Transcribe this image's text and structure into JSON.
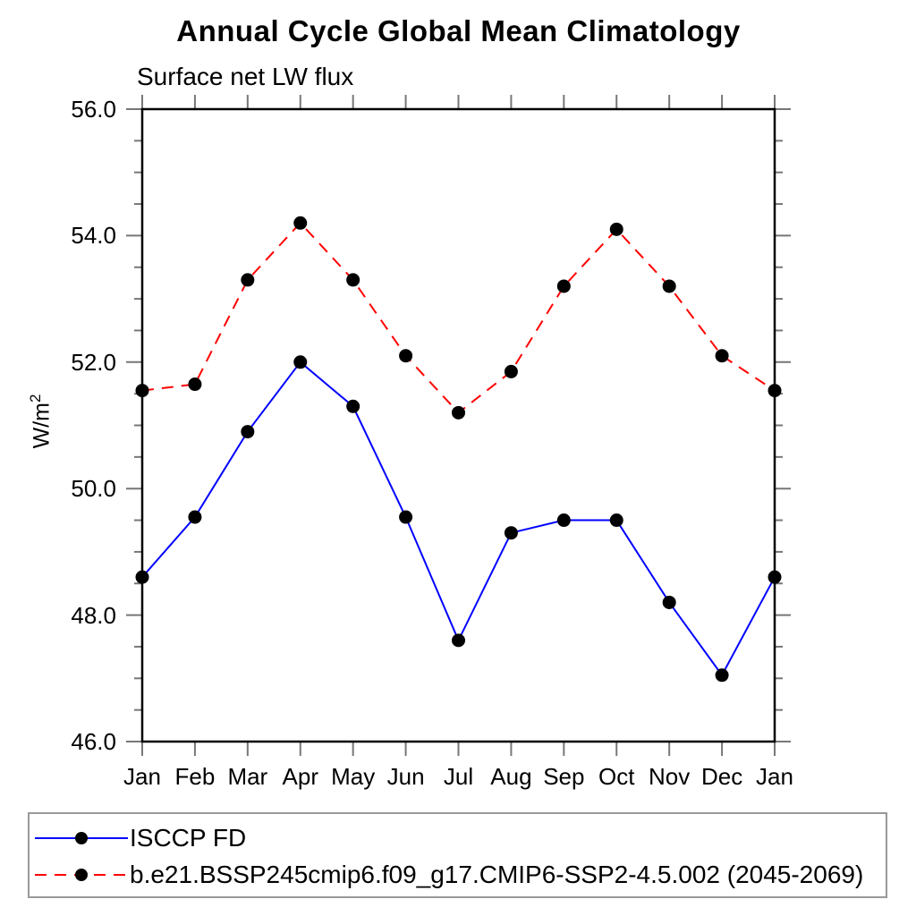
{
  "chart_data": {
    "type": "line",
    "title": "Annual Cycle Global Mean Climatology",
    "subtitle": "Surface net LW flux",
    "ylabel": "W/m",
    "ylabel_sup": "2",
    "ylim": [
      46.0,
      56.0
    ],
    "y_major_step": 2.0,
    "y_minor_step": 0.5,
    "y_ticks": [
      {
        "value": 56.0,
        "label": "56.0"
      },
      {
        "value": 54.0,
        "label": "54.0"
      },
      {
        "value": 52.0,
        "label": "52.0"
      },
      {
        "value": 50.0,
        "label": "50.0"
      },
      {
        "value": 48.0,
        "label": "48.0"
      },
      {
        "value": 46.0,
        "label": "46.0"
      }
    ],
    "categories": [
      "Jan",
      "Feb",
      "Mar",
      "Apr",
      "May",
      "Jun",
      "Jul",
      "Aug",
      "Sep",
      "Oct",
      "Nov",
      "Dec",
      "Jan"
    ],
    "series": [
      {
        "name": "ISCCP FD",
        "color": "#0000ff",
        "line_style": "solid",
        "marker": "filled-circle",
        "marker_color": "#000000",
        "values": [
          48.6,
          49.55,
          50.9,
          52.0,
          51.3,
          49.55,
          47.6,
          49.3,
          49.5,
          49.5,
          48.2,
          47.05,
          48.6
        ]
      },
      {
        "name": "b.e21.BSSP245cmip6.f09_g17.CMIP6-SSP2-4.5.002 (2045-2069)",
        "color": "#ff0000",
        "line_style": "dashed",
        "marker": "filled-circle",
        "marker_color": "#000000",
        "values": [
          51.55,
          51.65,
          53.3,
          54.2,
          53.3,
          52.1,
          51.2,
          51.85,
          53.2,
          54.1,
          53.2,
          52.1,
          51.55
        ]
      }
    ],
    "legend_position": "bottom",
    "axis_color": "#000000",
    "tick_color": "#777777",
    "legend_border_color": "#999999"
  }
}
